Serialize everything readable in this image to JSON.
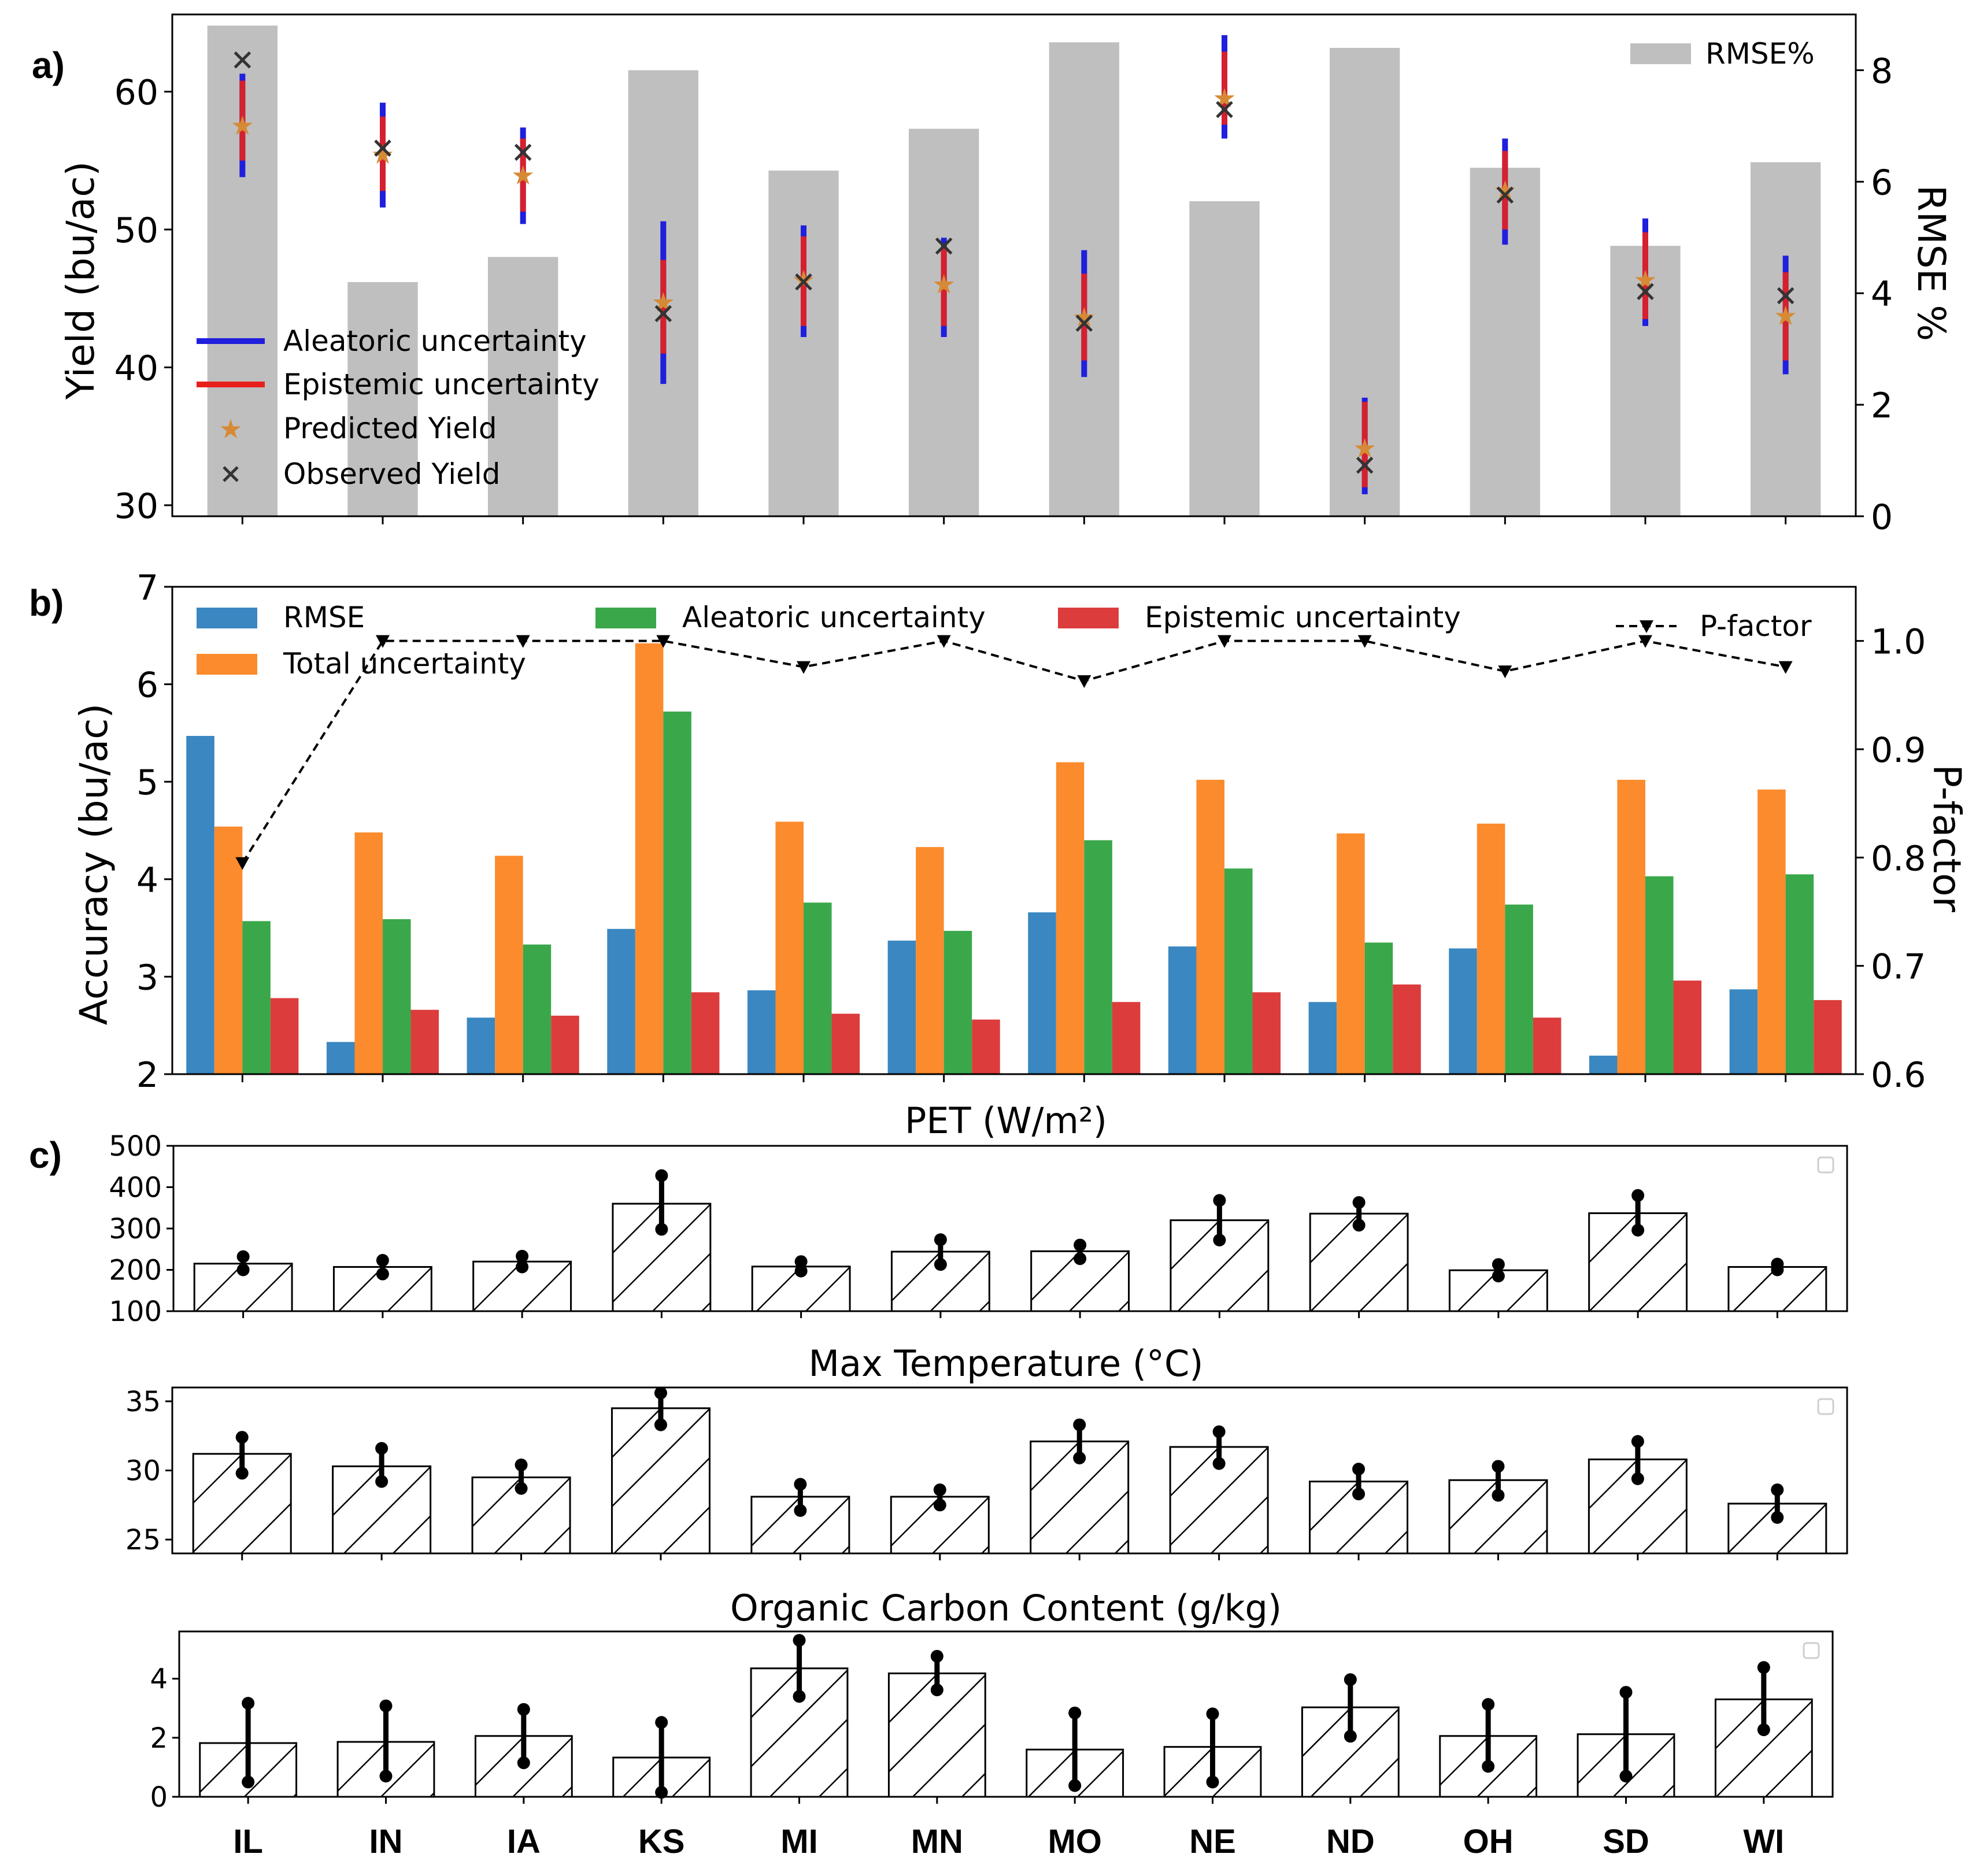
{
  "chart_data": [
    {
      "panel_label": "a)",
      "type": "bar",
      "categories": [
        "IL",
        "IN",
        "IA",
        "KS",
        "MI",
        "MN",
        "MO",
        "NE",
        "ND",
        "OH",
        "SD",
        "WI"
      ],
      "ylabel": "Yield (bu/ac)",
      "ylabel_right": "RMSE %",
      "ylim": [
        29.2,
        65.6
      ],
      "yticks": [
        30,
        40,
        50,
        60
      ],
      "ylim_right": [
        0,
        9.0
      ],
      "yticks_right": [
        0,
        2,
        4,
        6,
        8
      ],
      "series": [
        {
          "name": "RMSE%",
          "type": "bar",
          "axis": "right",
          "color": "#bfbfbf",
          "values": [
            8.8,
            4.2,
            4.65,
            8.0,
            6.2,
            6.95,
            8.5,
            5.65,
            8.4,
            6.25,
            4.85,
            6.35
          ]
        }
      ],
      "aleatoric": {
        "name": "Aleatoric uncertainty",
        "color": "#1f1fdd",
        "low": [
          53.8,
          51.6,
          50.4,
          38.8,
          42.2,
          42.2,
          39.3,
          56.6,
          30.8,
          48.9,
          43.0,
          39.5
        ],
        "high": [
          61.3,
          59.2,
          57.4,
          50.6,
          50.3,
          49.4,
          48.5,
          64.1,
          37.8,
          56.6,
          50.8,
          48.1
        ]
      },
      "epistemic": {
        "name": "Epistemic uncertainty",
        "color": "#e8201c",
        "low": [
          55.0,
          52.8,
          51.3,
          41.0,
          43.0,
          43.0,
          40.5,
          57.6,
          31.3,
          50.0,
          43.5,
          40.5
        ],
        "high": [
          60.8,
          58.2,
          56.6,
          47.8,
          49.5,
          48.8,
          46.8,
          62.9,
          37.5,
          55.7,
          49.8,
          46.9
        ]
      },
      "predicted": {
        "name": "Predicted Yield",
        "color": "#d68a35",
        "values": [
          57.5,
          55.4,
          53.9,
          44.7,
          46.3,
          46.0,
          43.6,
          59.5,
          34.1,
          52.8,
          46.3,
          43.7
        ]
      },
      "observed": {
        "name": "Observed Yield",
        "color": "#333333",
        "values": [
          62.3,
          55.9,
          55.6,
          43.9,
          46.2,
          48.8,
          43.2,
          58.7,
          32.9,
          52.5,
          45.5,
          45.2
        ]
      }
    },
    {
      "panel_label": "b)",
      "type": "bar",
      "categories": [
        "IL",
        "IN",
        "IA",
        "KS",
        "MI",
        "MN",
        "MO",
        "NE",
        "ND",
        "OH",
        "SD",
        "WI"
      ],
      "ylabel": "Accuracy (bu/ac)",
      "ylabel_right": "P-factor",
      "ylim": [
        2,
        7
      ],
      "yticks": [
        2,
        3,
        4,
        5,
        6,
        7
      ],
      "ylim_right": [
        0.6,
        1.05
      ],
      "yticks_right": [
        0.6,
        0.7,
        0.8,
        0.9,
        1.0
      ],
      "series": [
        {
          "name": "RMSE",
          "color": "#3a87c1",
          "values": [
            5.47,
            2.33,
            2.58,
            3.49,
            2.86,
            3.37,
            3.66,
            3.31,
            2.74,
            3.29,
            2.19,
            2.87
          ]
        },
        {
          "name": "Total uncertainty",
          "color": "#fb8b2c",
          "values": [
            4.54,
            4.48,
            4.24,
            6.42,
            4.59,
            4.33,
            5.2,
            5.02,
            4.47,
            4.57,
            5.02,
            4.92
          ]
        },
        {
          "name": "Aleatoric uncertainty",
          "color": "#3aa84a",
          "values": [
            3.57,
            3.59,
            3.33,
            5.72,
            3.76,
            3.47,
            4.4,
            4.11,
            3.35,
            3.74,
            4.03,
            4.05
          ]
        },
        {
          "name": "Epistemic uncertainty",
          "color": "#dc3c3c",
          "values": [
            2.78,
            2.66,
            2.6,
            2.84,
            2.62,
            2.56,
            2.74,
            2.84,
            2.92,
            2.58,
            2.96,
            2.76
          ]
        },
        {
          "name": "P-factor",
          "type": "line",
          "axis": "right",
          "color": "#000000",
          "values": [
            0.795,
            1.0,
            1.0,
            1.0,
            0.976,
            1.0,
            0.963,
            1.0,
            1.0,
            0.972,
            1.0,
            0.976
          ]
        }
      ]
    },
    {
      "panel_label": "c)",
      "type": "bar",
      "title": "PET (W/m²)",
      "categories": [
        "IL",
        "IN",
        "IA",
        "KS",
        "MI",
        "MN",
        "MO",
        "NE",
        "ND",
        "OH",
        "SD",
        "WI"
      ],
      "ylim": [
        100,
        500
      ],
      "yticks": [
        100,
        200,
        300,
        400,
        500
      ],
      "values": [
        215,
        207,
        220,
        360,
        208,
        244,
        245,
        320,
        336,
        199,
        337,
        207
      ],
      "err_low": [
        200,
        190,
        207,
        298,
        197,
        213,
        227,
        272,
        308,
        185,
        296,
        200
      ],
      "err_high": [
        232,
        223,
        233,
        428,
        220,
        273,
        260,
        368,
        363,
        213,
        380,
        214
      ]
    },
    {
      "type": "bar",
      "title": "Max Temperature (°C)",
      "categories": [
        "IL",
        "IN",
        "IA",
        "KS",
        "MI",
        "MN",
        "MO",
        "NE",
        "ND",
        "OH",
        "SD",
        "WI"
      ],
      "ylim": [
        24,
        36
      ],
      "yticks": [
        25,
        30,
        35
      ],
      "values": [
        31.2,
        30.3,
        29.5,
        34.5,
        28.1,
        28.1,
        32.1,
        31.7,
        29.2,
        29.3,
        30.8,
        27.6
      ],
      "err_low": [
        29.8,
        29.2,
        28.7,
        33.3,
        27.1,
        27.5,
        30.9,
        30.5,
        28.3,
        28.2,
        29.4,
        26.6
      ],
      "err_high": [
        32.4,
        31.6,
        30.4,
        35.6,
        29.0,
        28.6,
        33.3,
        32.8,
        30.1,
        30.3,
        32.1,
        28.6
      ]
    },
    {
      "type": "bar",
      "title": "Organic Carbon Content (g/kg)",
      "categories": [
        "IL",
        "IN",
        "IA",
        "KS",
        "MI",
        "MN",
        "MO",
        "NE",
        "ND",
        "OH",
        "SD",
        "WI"
      ],
      "ylim": [
        0,
        5.6
      ],
      "yticks": [
        0,
        2,
        4
      ],
      "values": [
        1.82,
        1.86,
        2.06,
        1.33,
        4.35,
        4.18,
        1.6,
        1.69,
        3.03,
        2.06,
        2.12,
        3.3
      ],
      "err_low": [
        0.5,
        0.7,
        1.15,
        0.15,
        3.4,
        3.62,
        0.38,
        0.5,
        2.05,
        1.03,
        0.7,
        2.27
      ],
      "err_high": [
        3.17,
        3.08,
        2.96,
        2.52,
        5.3,
        4.76,
        2.84,
        2.81,
        3.97,
        3.13,
        3.54,
        4.38
      ]
    }
  ],
  "x_tick_labels": [
    "IL",
    "IN",
    "IA",
    "KS",
    "MI",
    "MN",
    "MO",
    "NE",
    "ND",
    "OH",
    "SD",
    "WI"
  ]
}
